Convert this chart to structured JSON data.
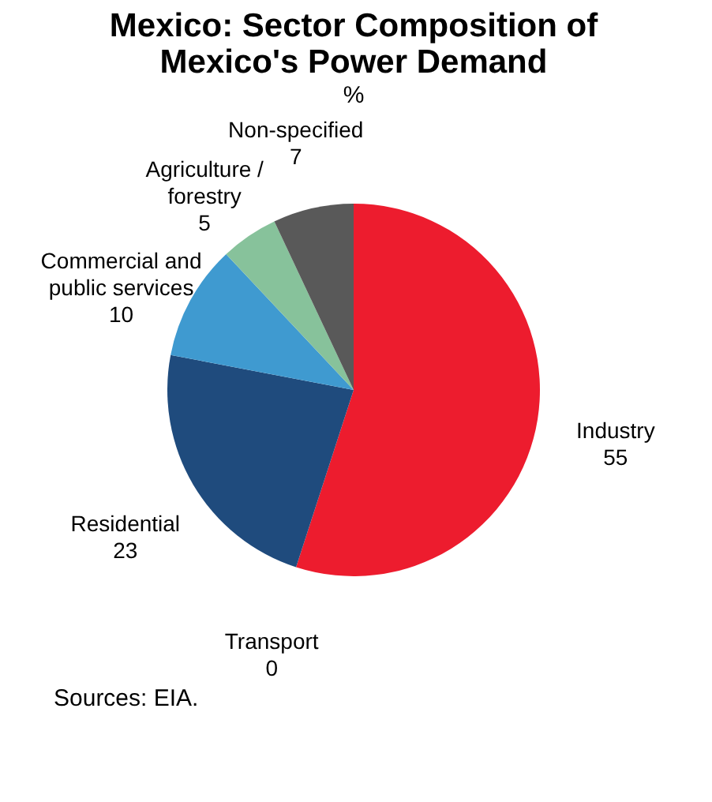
{
  "chart_data": {
    "type": "pie",
    "title": "Mexico: Sector Composition of Mexico's Power Demand",
    "subtitle": "%",
    "categories": [
      "Industry",
      "Transport",
      "Residential",
      "Commercial and public services",
      "Agriculture / forestry",
      "Non-specified"
    ],
    "values": [
      55,
      0,
      23,
      10,
      5,
      7
    ],
    "colors": [
      "#ed1c2e",
      "#a6a6a6",
      "#1f4b7d",
      "#3f9ad0",
      "#87c29b",
      "#595959"
    ],
    "value_labels": [
      "55",
      "0",
      "23",
      "10",
      "5",
      "7"
    ],
    "legend": false,
    "annotations": [
      "Sources: EIA."
    ]
  }
}
